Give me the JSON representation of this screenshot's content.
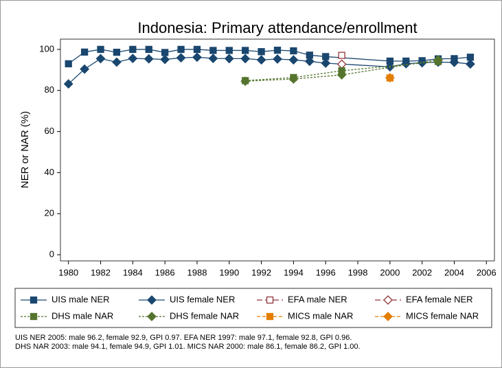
{
  "chart_data": {
    "type": "line",
    "title": "Indonesia: Primary attendance/enrollment",
    "y_label": "NER or NAR (%)",
    "xlim": [
      1979.5,
      2006.5
    ],
    "xticks": [
      1980,
      1982,
      1984,
      1986,
      1988,
      1990,
      1992,
      1994,
      1996,
      1998,
      2000,
      2002,
      2004,
      2006
    ],
    "ylim": [
      -3,
      105
    ],
    "yticks": [
      0,
      20,
      40,
      60,
      80,
      100
    ],
    "grid": false,
    "series": [
      {
        "name": "UIS male NER",
        "color": "#1a476f",
        "marker": "square",
        "filled": true,
        "dash": "none",
        "x": [
          1980,
          1981,
          1982,
          1983,
          1984,
          1985,
          1986,
          1987,
          1988,
          1989,
          1990,
          1991,
          1992,
          1993,
          1994,
          1995,
          1996,
          2000,
          2001,
          2002,
          2003,
          2004,
          2005
        ],
        "values": [
          93.0,
          98.7,
          100,
          98.6,
          100,
          100,
          98.5,
          100,
          100,
          99.5,
          99.5,
          99.5,
          98.9,
          99.6,
          99.3,
          97.2,
          96.5,
          94.3,
          94.3,
          94.5,
          95.4,
          95.5,
          96.2
        ]
      },
      {
        "name": "UIS female NER",
        "color": "#1a476f",
        "marker": "diamond",
        "filled": true,
        "dash": "none",
        "x": [
          1980,
          1981,
          1982,
          1983,
          1984,
          1985,
          1986,
          1987,
          1988,
          1989,
          1990,
          1991,
          1992,
          1993,
          1994,
          1995,
          1996,
          2000,
          2001,
          2002,
          2003,
          2004,
          2005
        ],
        "values": [
          83.2,
          90.4,
          95.5,
          93.8,
          95.6,
          95.4,
          95.1,
          95.9,
          96.2,
          95.6,
          95.5,
          95.5,
          94.9,
          95.3,
          94.9,
          94.2,
          93.3,
          91.5,
          93.0,
          93.5,
          93.8,
          93.7,
          92.9
        ]
      },
      {
        "name": "EFA male NER",
        "color": "#90353b",
        "marker": "square",
        "filled": false,
        "dash": "8 4",
        "x": [
          1997
        ],
        "values": [
          97.1
        ]
      },
      {
        "name": "EFA female NER",
        "color": "#90353b",
        "marker": "diamond",
        "filled": false,
        "dash": "8 4",
        "x": [
          1997
        ],
        "values": [
          92.8
        ]
      },
      {
        "name": "DHS male NAR",
        "color": "#55752f",
        "marker": "square",
        "filled": true,
        "dash": "3 2",
        "x": [
          1991,
          1994,
          1997,
          2003
        ],
        "values": [
          84.8,
          86.3,
          89.6,
          94.1
        ]
      },
      {
        "name": "DHS female NAR",
        "color": "#55752f",
        "marker": "diamond",
        "filled": true,
        "dash": "3 2",
        "x": [
          1991,
          1994,
          1997,
          2003
        ],
        "values": [
          84.5,
          85.6,
          87.6,
          94.9
        ]
      },
      {
        "name": "MICS male NAR",
        "color": "#e37e00",
        "marker": "square",
        "filled": true,
        "dash": "5 3",
        "x": [
          2000
        ],
        "values": [
          86.1
        ]
      },
      {
        "name": "MICS female NAR",
        "color": "#e37e00",
        "marker": "diamond",
        "filled": true,
        "dash": "5 3",
        "x": [
          2000
        ],
        "values": [
          86.2
        ]
      }
    ],
    "note": [
      "UIS NER 2005: male 96.2, female 92.9, GPI 0.97. EFA NER 1997: male 97.1, female 92.8, GPI 0.96.",
      "DHS NAR 2003: male 94.1, female 94.9, GPI 1.01. MICS NAR 2000: male 86.1, female 86.2, GPI 1.00."
    ]
  }
}
